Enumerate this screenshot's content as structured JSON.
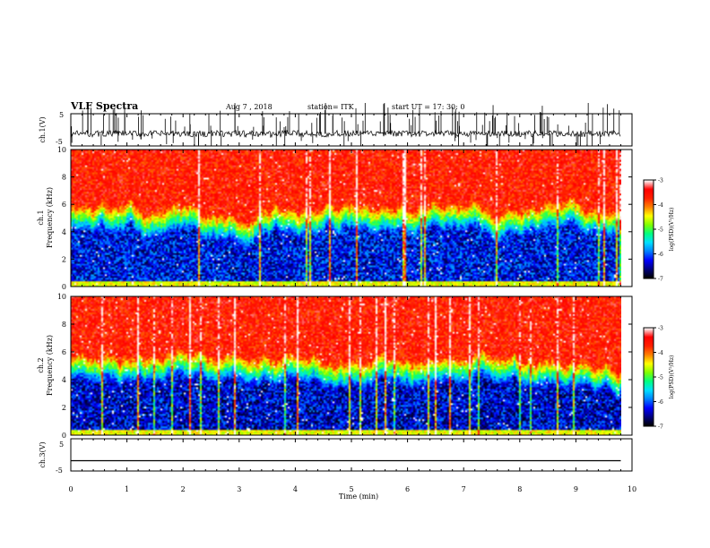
{
  "header": {
    "title": "VLF Spectra",
    "date": "Aug 7 , 2018",
    "station": "station= ITK",
    "start": "start  UT =   17: 30: 0"
  },
  "chart_data": [
    {
      "type": "line",
      "panel": "ch1-waveform",
      "ylabel": "ch.1(V)",
      "ylim": [
        -5,
        5
      ],
      "yticks": [
        "5",
        "-5"
      ],
      "xlim": [
        0,
        10
      ],
      "color": "#000000",
      "baseline": -1.2,
      "noise": 1.0,
      "spike_count": 150
    },
    {
      "type": "heatmap",
      "panel": "ch1-spectrogram",
      "ylabel": "ch.1 Frequency (kHz)",
      "ylim": [
        0,
        10
      ],
      "yticks": [
        "0",
        "2",
        "4",
        "6",
        "8",
        "10"
      ],
      "xlim": [
        0,
        9.8
      ],
      "colorbar": {
        "label": "log(PSD)(V²/Hz)",
        "range": [
          -7,
          -3
        ],
        "ticks": [
          "-3",
          "-4",
          "-5",
          "-6",
          "-7"
        ],
        "colors": [
          "#000000",
          "#000080",
          "#0000ff",
          "#0080ff",
          "#00e0ff",
          "#00ff80",
          "#80ff00",
          "#ffff00",
          "#ff8000",
          "#ff2000",
          "#ff0000",
          "#ffffff"
        ]
      },
      "profile": {
        "low_band_khz": [
          0.5,
          4.0
        ],
        "low_log_psd": -6.3,
        "transition_khz": [
          4.0,
          6.0
        ],
        "high_log_psd": -3.6
      }
    },
    {
      "type": "heatmap",
      "panel": "ch2-spectrogram",
      "ylabel": "ch.2 Frequency (kHz)",
      "ylim": [
        0,
        10
      ],
      "yticks": [
        "0",
        "2",
        "4",
        "6",
        "8",
        "10"
      ],
      "xlim": [
        0,
        9.8
      ],
      "colorbar": {
        "label": "log(PSD)(V²/Hz)",
        "range": [
          -7,
          -3
        ],
        "ticks": [
          "-3",
          "-4",
          "-5",
          "-6",
          "-7"
        ]
      },
      "profile": {
        "low_band_khz": [
          0.5,
          3.8
        ],
        "low_log_psd": -6.4,
        "transition_khz": [
          3.8,
          5.8
        ],
        "high_log_psd": -3.6
      }
    },
    {
      "type": "line",
      "panel": "ch3-waveform",
      "ylabel": "ch.3(V)",
      "ylim": [
        -5,
        5
      ],
      "yticks": [
        "5",
        "-5"
      ],
      "xlim": [
        0,
        9.8
      ],
      "color": "#000000",
      "baseline": -1.8
    }
  ],
  "xaxis": {
    "label": "Time  (min)",
    "range": [
      0,
      10
    ],
    "ticks": [
      "0",
      "1",
      "2",
      "3",
      "4",
      "5",
      "6",
      "7",
      "8",
      "9",
      "10"
    ]
  },
  "labels": {
    "ch1_line1": "ch.1",
    "ch1_line2": "Frequency  (kHz)",
    "ch2_line1": "ch.2",
    "ch2_line2": "Frequency  (kHz)"
  }
}
